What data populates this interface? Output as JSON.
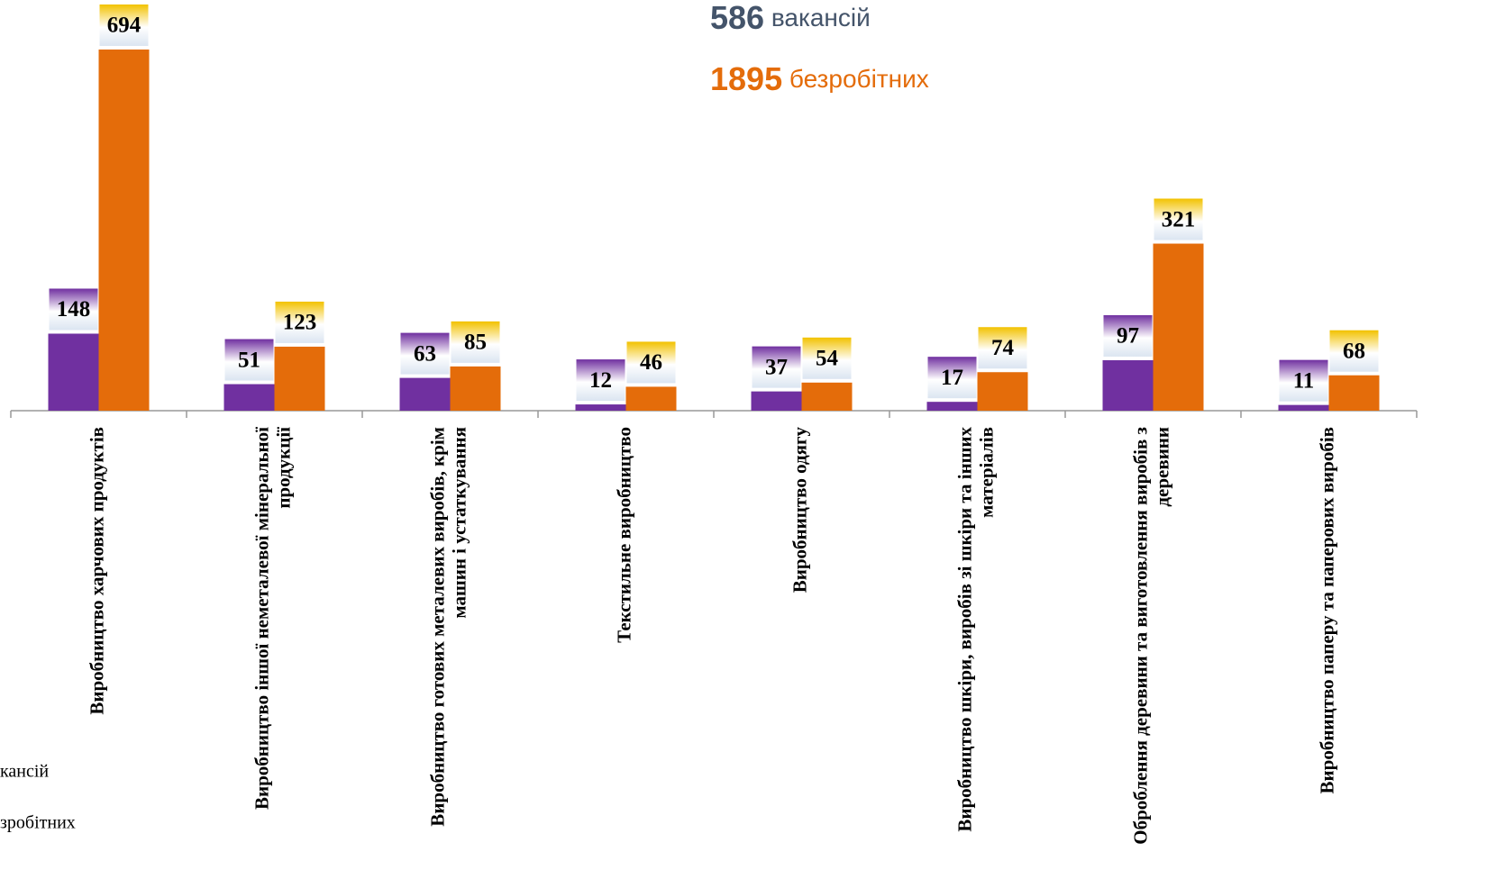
{
  "chart_data": {
    "type": "bar",
    "categories": [
      "Виробництво харчових продуктів",
      "Виробництво іншої неметалевої мінеральної продукції",
      "Виробництво готових металевих виробів, крім машин і устаткування",
      "Текстильне виробництво",
      "Виробництво одягу",
      "Виробництво шкіри, виробів зі шкіри та інших матеріалів",
      "Оброблення деревини та виготовлення виробів з деревини",
      "Виробництво паперу та паперових виробів"
    ],
    "series": [
      {
        "name": "кансій",
        "color": "#7030a0",
        "label_color": "#7030a0",
        "values": [
          148,
          51,
          63,
          12,
          37,
          17,
          97,
          11
        ]
      },
      {
        "name": "зробітних",
        "color": "#e46c0a",
        "label_color": "#f2c200",
        "values": [
          694,
          123,
          85,
          46,
          54,
          74,
          321,
          68
        ]
      }
    ],
    "totals": [
      {
        "number": "586",
        "text": "вакансій",
        "color": "#44546a"
      },
      {
        "number": "1895",
        "text": "безробітних",
        "color": "#e46c0a"
      }
    ]
  }
}
